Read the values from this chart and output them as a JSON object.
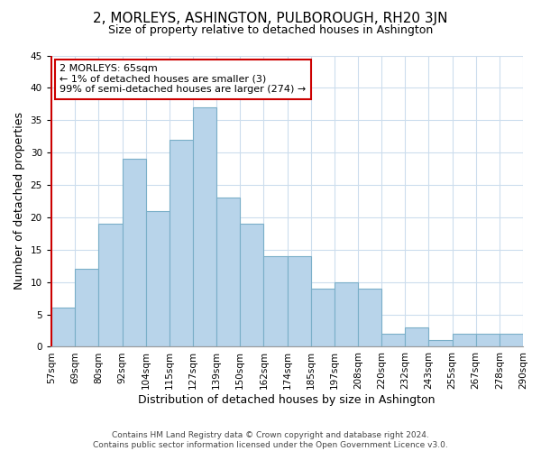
{
  "title": "2, MORLEYS, ASHINGTON, PULBOROUGH, RH20 3JN",
  "subtitle": "Size of property relative to detached houses in Ashington",
  "xlabel": "Distribution of detached houses by size in Ashington",
  "ylabel": "Number of detached properties",
  "bar_labels": [
    "57sqm",
    "69sqm",
    "80sqm",
    "92sqm",
    "104sqm",
    "115sqm",
    "127sqm",
    "139sqm",
    "150sqm",
    "162sqm",
    "174sqm",
    "185sqm",
    "197sqm",
    "208sqm",
    "220sqm",
    "232sqm",
    "243sqm",
    "255sqm",
    "267sqm",
    "278sqm",
    "290sqm"
  ],
  "bar_values": [
    6,
    12,
    19,
    29,
    21,
    32,
    37,
    23,
    19,
    14,
    14,
    9,
    10,
    9,
    2,
    3,
    1,
    2,
    2,
    2
  ],
  "bar_color": "#b8d4ea",
  "bar_edge_color": "#7aafc8",
  "highlight_color": "#cc0000",
  "ylim": [
    0,
    45
  ],
  "yticks": [
    0,
    5,
    10,
    15,
    20,
    25,
    30,
    35,
    40,
    45
  ],
  "annotation_title": "2 MORLEYS: 65sqm",
  "annotation_line1": "← 1% of detached houses are smaller (3)",
  "annotation_line2": "99% of semi-detached houses are larger (274) →",
  "annotation_box_color": "#ffffff",
  "annotation_box_edge_color": "#cc0000",
  "footer_line1": "Contains HM Land Registry data © Crown copyright and database right 2024.",
  "footer_line2": "Contains public sector information licensed under the Open Government Licence v3.0.",
  "bg_color": "#ffffff",
  "grid_color": "#ccdded",
  "title_fontsize": 11,
  "subtitle_fontsize": 9,
  "axis_label_fontsize": 9,
  "tick_fontsize": 7.5,
  "annotation_fontsize": 8,
  "footer_fontsize": 6.5
}
